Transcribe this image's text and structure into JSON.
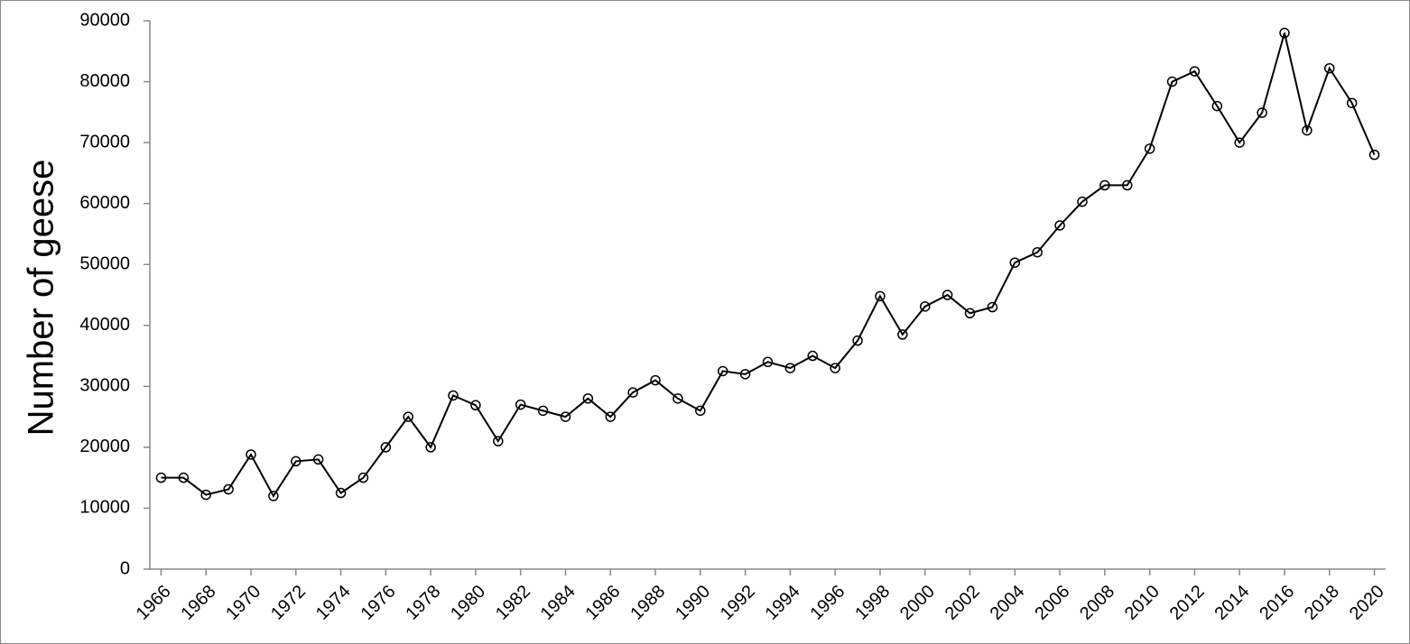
{
  "chart_data": {
    "type": "line",
    "y_label": "Number of geese",
    "x": [
      1966,
      1967,
      1968,
      1969,
      1970,
      1971,
      1972,
      1973,
      1974,
      1975,
      1976,
      1977,
      1978,
      1979,
      1980,
      1981,
      1982,
      1983,
      1984,
      1985,
      1986,
      1987,
      1988,
      1989,
      1990,
      1991,
      1992,
      1993,
      1994,
      1995,
      1996,
      1997,
      1998,
      1999,
      2000,
      2001,
      2002,
      2003,
      2004,
      2005,
      2006,
      2007,
      2008,
      2009,
      2010,
      2011,
      2012,
      2013,
      2014,
      2015,
      2016,
      2017,
      2018,
      2019,
      2020
    ],
    "series": [
      {
        "color": "#000000",
        "values": [
          15000,
          15000,
          12200,
          13100,
          18800,
          12000,
          17700,
          18000,
          12500,
          15000,
          20000,
          25000,
          20000,
          28500,
          26900,
          21000,
          27000,
          26000,
          25000,
          28000,
          25000,
          29000,
          31000,
          28000,
          26000,
          32500,
          32000,
          34000,
          33000,
          35000,
          33000,
          37500,
          44800,
          38500,
          43100,
          45000,
          42000,
          43000,
          50300,
          52000,
          56400,
          60300,
          63000,
          63000,
          69000,
          80000,
          81700,
          76000,
          70000,
          74900,
          88000,
          72000,
          82200,
          76500,
          68000
        ]
      }
    ],
    "xlim": [
      1965.5,
      2020.5
    ],
    "xticks": [
      1966,
      1968,
      1970,
      1972,
      1974,
      1976,
      1978,
      1980,
      1982,
      1984,
      1986,
      1988,
      1990,
      1992,
      1994,
      1996,
      1998,
      2000,
      2002,
      2004,
      2006,
      2008,
      2010,
      2012,
      2014,
      2016,
      2018,
      2020
    ],
    "ylim": [
      0,
      90000
    ],
    "yticks": [
      0,
      10000,
      20000,
      30000,
      40000,
      50000,
      60000,
      70000,
      80000,
      90000
    ],
    "grid": false
  }
}
